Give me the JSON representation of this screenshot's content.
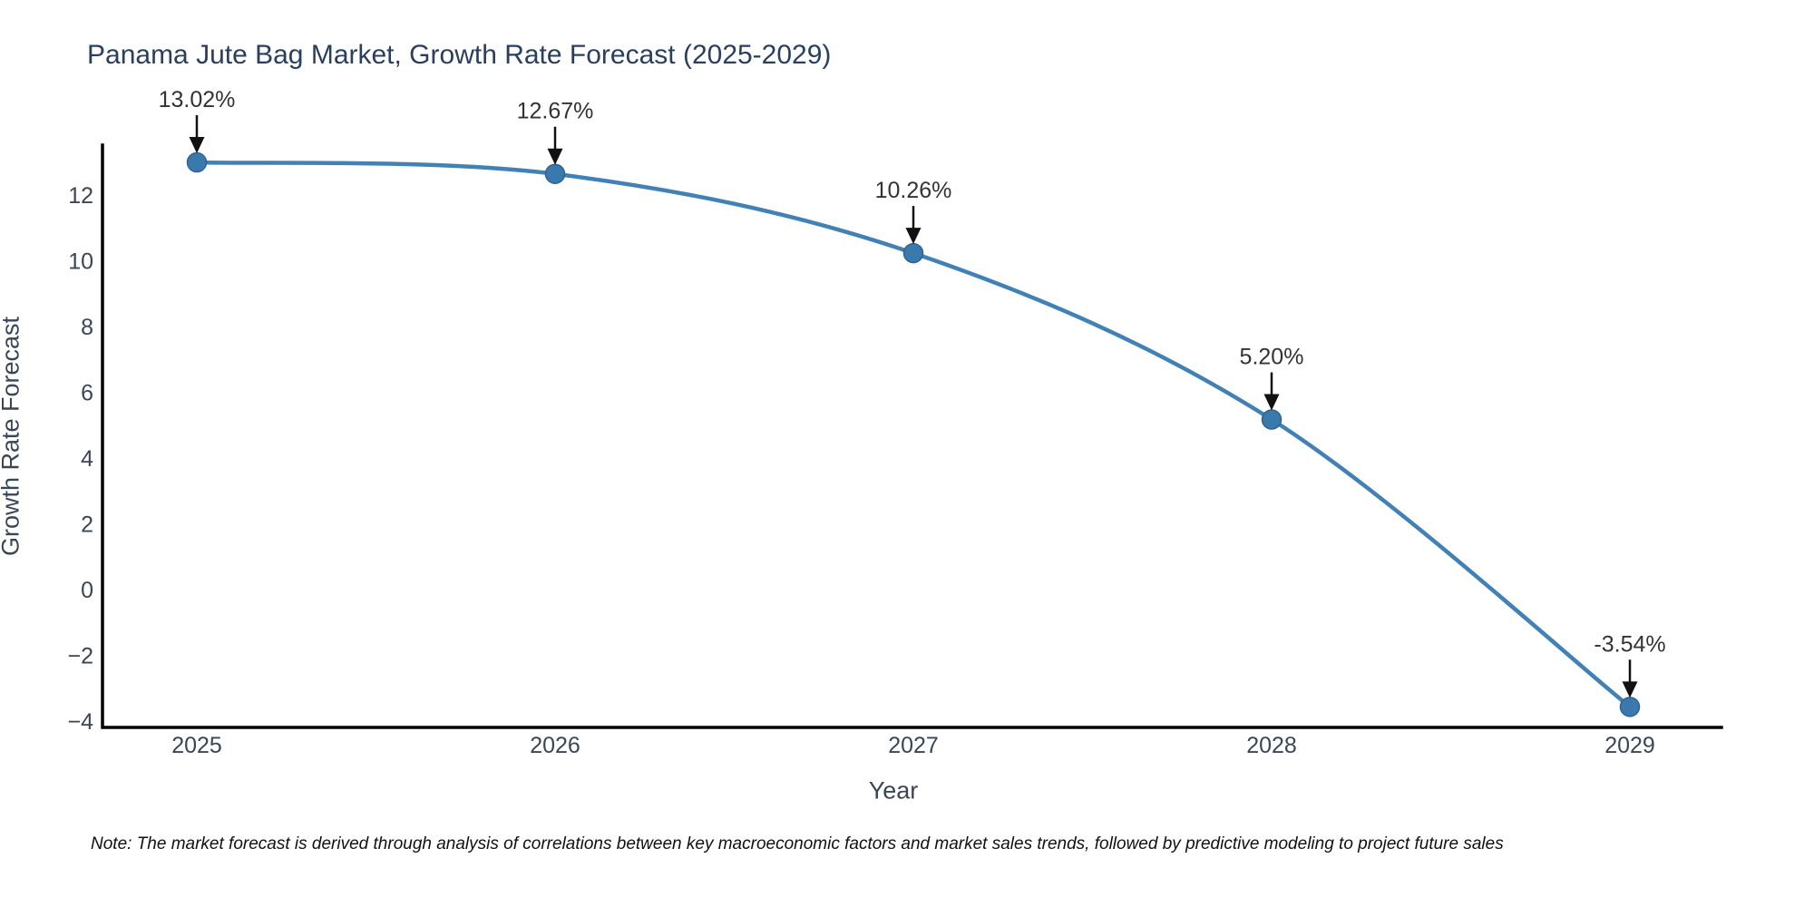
{
  "chart_data": {
    "type": "line",
    "title": "Panama Jute Bag Market, Growth Rate Forecast (2025-2029)",
    "xlabel": "Year",
    "ylabel": "Growth Rate Forecast",
    "categories": [
      "2025",
      "2026",
      "2027",
      "2028",
      "2029"
    ],
    "series": [
      {
        "name": "Growth Rate Forecast",
        "values": [
          13.02,
          12.67,
          10.26,
          5.2,
          -3.54
        ],
        "point_labels": [
          "13.02%",
          "12.67%",
          "10.26%",
          "5.20%",
          "-3.54%"
        ]
      }
    ],
    "y_tick_values": [
      -4,
      -2,
      0,
      2,
      4,
      6,
      8,
      10,
      12
    ],
    "y_tick_labels": [
      "−4",
      "−2",
      "0",
      "2",
      "4",
      "6",
      "8",
      "10",
      "12"
    ],
    "ylim": [
      -4.17,
      13.55
    ],
    "grid": false,
    "legend": "none",
    "line_color": "#4181b5",
    "marker_color": "#3a79ae",
    "marker_edge_color": "#30648f",
    "axis_color": "#000000",
    "annotation_arrow_color": "#111111"
  },
  "note": {
    "text": "Note: The market forecast is derived through analysis of correlations between key macroeconomic factors and market sales trends, followed by predictive modeling to project future sales"
  }
}
